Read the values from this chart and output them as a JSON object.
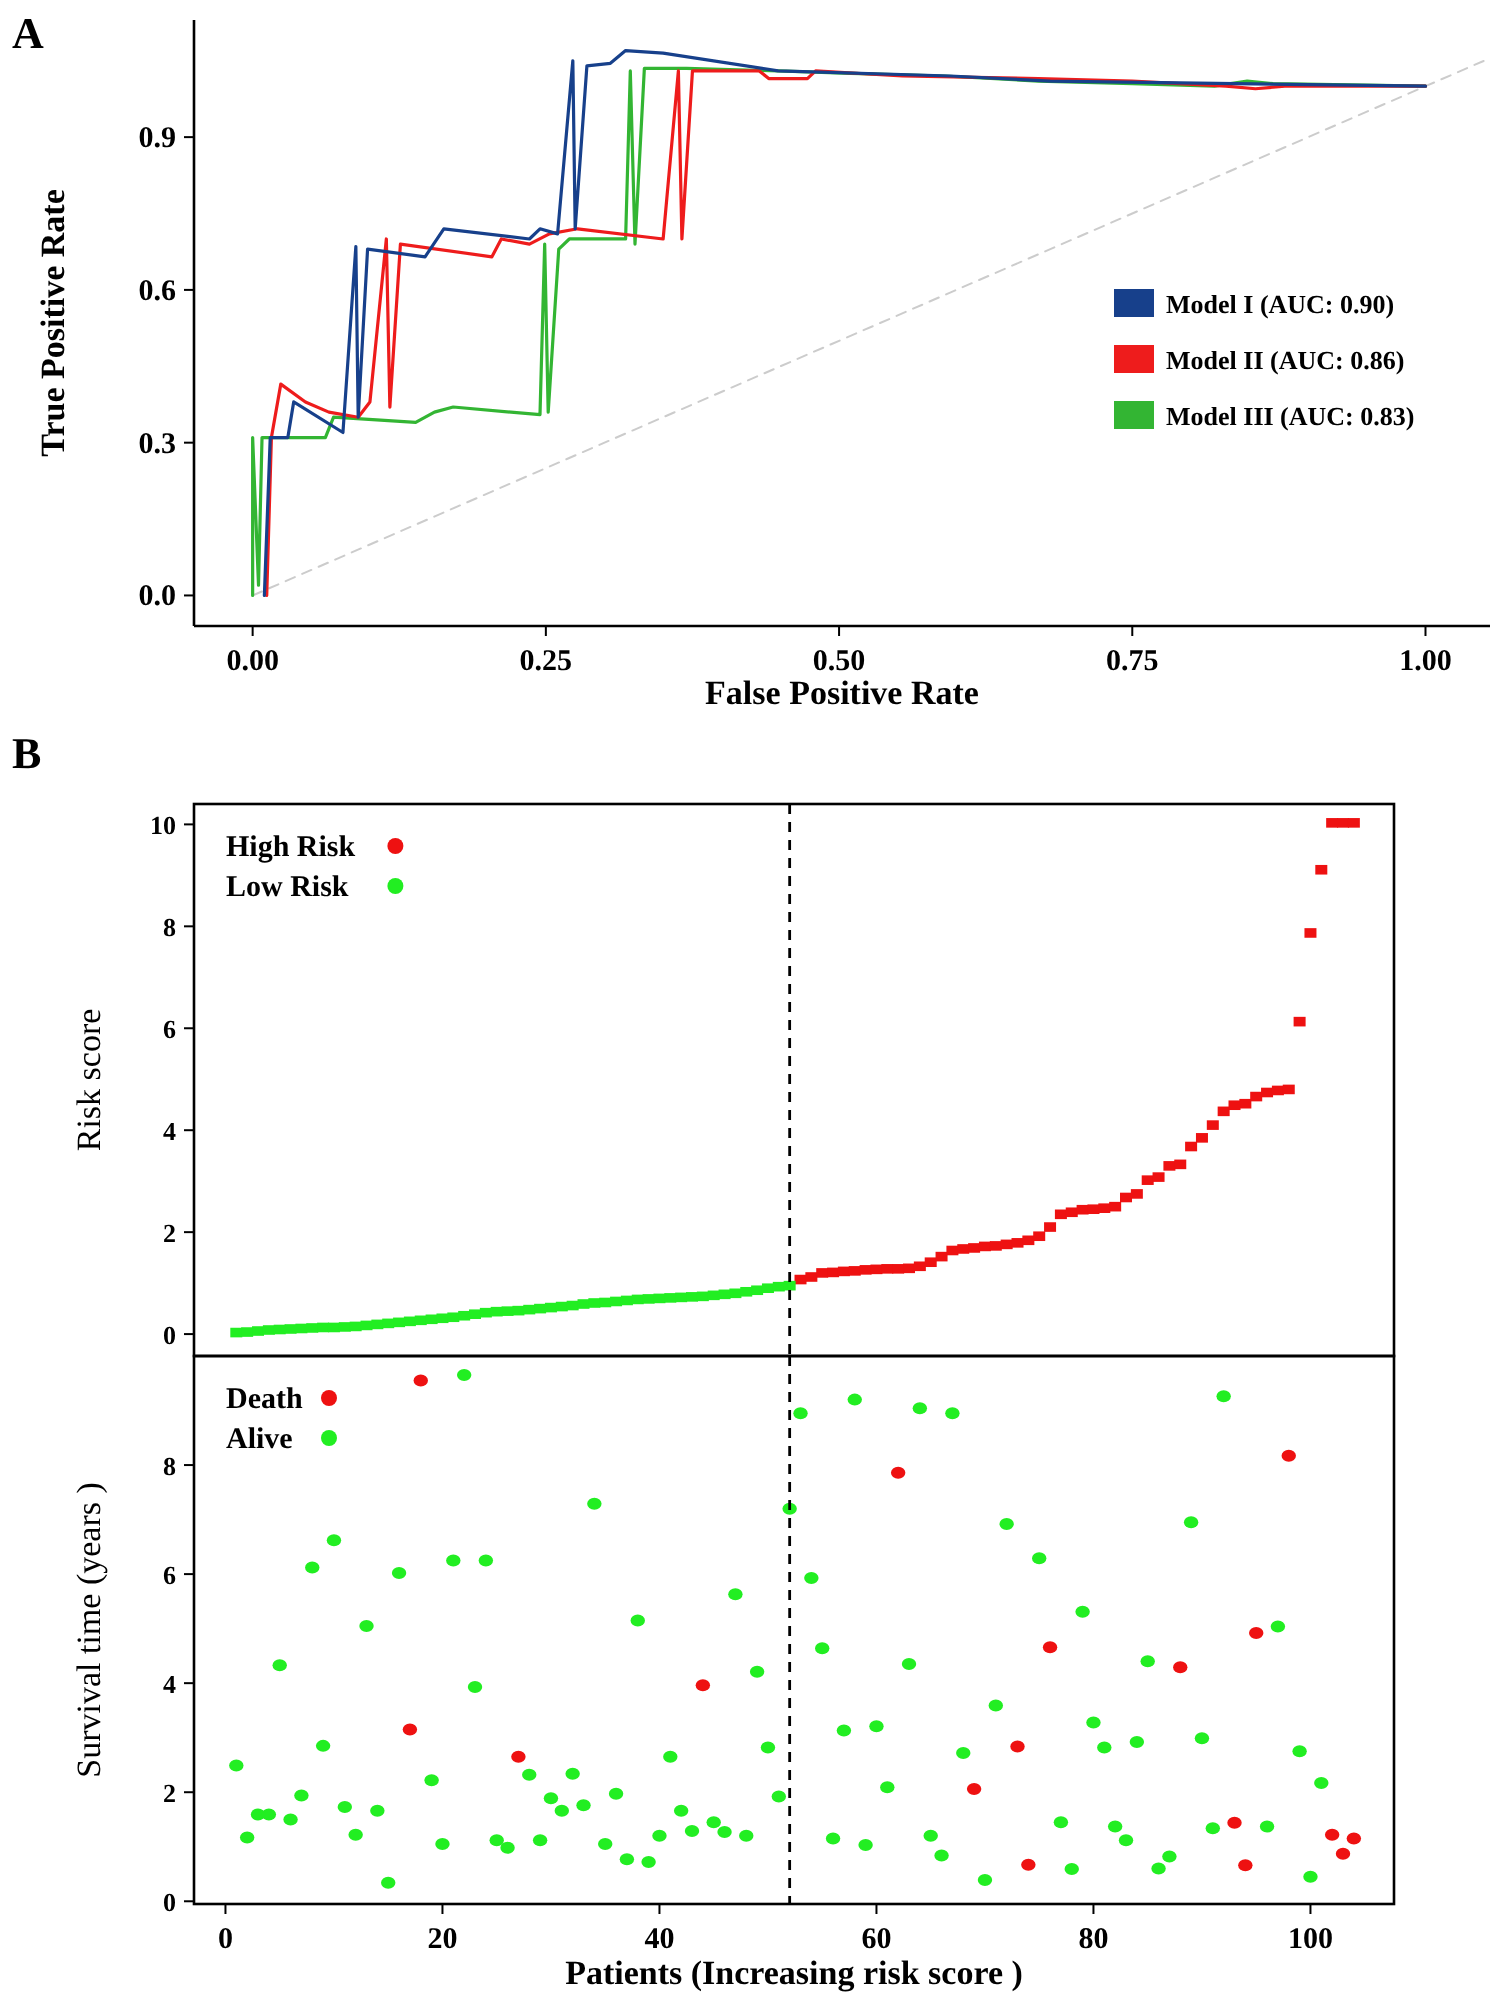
{
  "chart_data": [
    {
      "type": "line",
      "xlabel": "False Positive Rate",
      "ylabel": "True Positive Rate",
      "annotations": [
        "A"
      ],
      "xlim": [
        -0.05,
        1.055
      ],
      "ylim": [
        -0.06,
        1.13
      ],
      "xticks": [
        {
          "value": 0,
          "label": "0.00"
        },
        {
          "value": 0.25,
          "label": "0.25"
        },
        {
          "value": 0.5,
          "label": "0.50"
        },
        {
          "value": 0.75,
          "label": "0.75"
        },
        {
          "value": 1,
          "label": "1.00"
        }
      ],
      "yticks": [
        {
          "value": 0,
          "label": "0.0"
        },
        {
          "value": 0.3,
          "label": "0.3"
        },
        {
          "value": 0.6,
          "label": "0.6"
        },
        {
          "value": 0.9,
          "label": "0.9"
        }
      ],
      "legend": "right",
      "grid": false,
      "series": [
        {
          "x": [
            0,
            1.05
          ],
          "values": [
            0,
            1.05
          ],
          "color": "#cccccc",
          "line_style": "dashed"
        },
        {
          "name": "Model III (AUC: 0.83)",
          "color": "#33b533",
          "x": [
            0,
            0,
            0.005,
            0.008,
            0.062,
            0.069,
            0.139,
            0.155,
            0.171,
            0.245,
            0.249,
            0.252,
            0.261,
            0.27,
            0.318,
            0.322,
            0.326,
            0.334,
            0.37,
            0.448,
            0.51,
            0.59,
            0.67,
            0.75,
            0.82,
            0.848,
            0.87,
            1
          ],
          "values": [
            0,
            0.31,
            0.02,
            0.31,
            0.31,
            0.35,
            0.34,
            0.36,
            0.37,
            0.355,
            0.69,
            0.36,
            0.68,
            0.7,
            0.7,
            1.03,
            0.69,
            1.035,
            1.035,
            1.03,
            1.025,
            1.02,
            1.01,
            1.005,
            1,
            1.01,
            1.005,
            1
          ]
        },
        {
          "name": "Model II (AUC: 0.86)",
          "color": "#ee1c1c",
          "x": [
            0.012,
            0.016,
            0.024,
            0.045,
            0.065,
            0.09,
            0.1,
            0.114,
            0.117,
            0.126,
            0.204,
            0.212,
            0.236,
            0.253,
            0.277,
            0.35,
            0.363,
            0.366,
            0.375,
            0.432,
            0.44,
            0.473,
            0.48,
            0.554,
            0.67,
            0.75,
            0.83,
            0.855,
            0.88,
            1
          ],
          "values": [
            0,
            0.31,
            0.415,
            0.38,
            0.36,
            0.35,
            0.38,
            0.7,
            0.37,
            0.69,
            0.665,
            0.7,
            0.69,
            0.71,
            0.72,
            0.7,
            1.03,
            0.7,
            1.03,
            1.03,
            1.015,
            1.015,
            1.03,
            1.02,
            1.015,
            1.01,
            1,
            0.995,
            1,
            1
          ]
        },
        {
          "name": "Model I (AUC: 0.90)",
          "color": "#17408b",
          "x": [
            0.01,
            0.015,
            0.03,
            0.035,
            0.077,
            0.088,
            0.09,
            0.098,
            0.147,
            0.163,
            0.236,
            0.245,
            0.26,
            0.273,
            0.275,
            0.285,
            0.305,
            0.318,
            0.35,
            0.448,
            0.595,
            0.68,
            1
          ],
          "values": [
            0,
            0.31,
            0.31,
            0.38,
            0.32,
            0.685,
            0.35,
            0.68,
            0.665,
            0.72,
            0.7,
            0.72,
            0.71,
            1.05,
            0.72,
            1.04,
            1.045,
            1.07,
            1.065,
            1.03,
            1.02,
            1.01,
            1
          ]
        }
      ]
    },
    {
      "type": "scatter",
      "ylabel": "Risk score",
      "annotations": [
        "B"
      ],
      "xlim": [
        -2.9,
        107.7
      ],
      "ylim": [
        -0.43,
        10.4
      ],
      "yticks": [
        0,
        2,
        4,
        6,
        8,
        10
      ],
      "tick_labels": "y",
      "marker": "square",
      "legend": "top left",
      "grid": false,
      "ref_lines": [
        {
          "axis": "x",
          "value": 52,
          "color": "#000000",
          "line_style": "dashed"
        }
      ],
      "series": [
        {
          "name": "High Risk",
          "color": "#ee1111",
          "x": [
            53,
            54,
            55,
            56,
            57,
            58,
            59,
            60,
            61,
            62,
            63,
            64,
            65,
            66,
            67,
            68,
            69,
            70,
            71,
            72,
            73,
            74,
            75,
            76,
            77,
            78,
            79,
            80,
            81,
            82,
            83,
            84,
            85,
            86,
            87,
            88,
            89,
            90,
            91,
            92,
            93,
            94,
            95,
            96,
            97,
            98,
            99,
            100,
            101,
            102,
            103,
            104
          ],
          "values": [
            1.07,
            1.12,
            1.2,
            1.21,
            1.23,
            1.24,
            1.26,
            1.27,
            1.28,
            1.28,
            1.29,
            1.33,
            1.41,
            1.52,
            1.64,
            1.67,
            1.69,
            1.72,
            1.73,
            1.76,
            1.79,
            1.84,
            1.92,
            2.1,
            2.35,
            2.39,
            2.44,
            2.45,
            2.47,
            2.5,
            2.68,
            2.75,
            3.02,
            3.08,
            3.3,
            3.33,
            3.68,
            3.85,
            4.1,
            4.37,
            4.49,
            4.52,
            4.66,
            4.74,
            4.78,
            4.8,
            6.13,
            7.87,
            9.11,
            10.03,
            10.03,
            10.03
          ]
        },
        {
          "name": "Low Risk",
          "color": "#22ee22",
          "x": [
            1,
            2,
            3,
            4,
            5,
            6,
            7,
            8,
            9,
            10,
            11,
            12,
            13,
            14,
            15,
            16,
            17,
            18,
            19,
            20,
            21,
            22,
            23,
            24,
            25,
            26,
            27,
            28,
            29,
            30,
            31,
            32,
            33,
            34,
            35,
            36,
            37,
            38,
            39,
            40,
            41,
            42,
            43,
            44,
            45,
            46,
            47,
            48,
            49,
            50,
            51,
            52
          ],
          "values": [
            0.03,
            0.04,
            0.06,
            0.08,
            0.09,
            0.1,
            0.11,
            0.12,
            0.13,
            0.13,
            0.14,
            0.15,
            0.17,
            0.19,
            0.21,
            0.23,
            0.25,
            0.27,
            0.29,
            0.31,
            0.33,
            0.36,
            0.39,
            0.42,
            0.44,
            0.45,
            0.46,
            0.48,
            0.5,
            0.52,
            0.54,
            0.56,
            0.59,
            0.61,
            0.62,
            0.64,
            0.66,
            0.68,
            0.69,
            0.7,
            0.71,
            0.72,
            0.73,
            0.74,
            0.76,
            0.78,
            0.8,
            0.83,
            0.86,
            0.9,
            0.93,
            0.95
          ]
        }
      ]
    },
    {
      "type": "scatter",
      "xlabel": "Patients (Increasing risk score )",
      "ylabel": "Survival time (years )",
      "xlim": [
        -2.9,
        107.7
      ],
      "ylim": [
        -0.05,
        10.0
      ],
      "xticks": [
        0,
        20,
        40,
        60,
        80,
        100
      ],
      "yticks": [
        0,
        2,
        4,
        6,
        8
      ],
      "marker": "circle",
      "legend": "top left",
      "grid": false,
      "ref_lines": [
        {
          "axis": "x",
          "value": 52,
          "color": "#000000",
          "line_style": "dashed"
        }
      ],
      "series": [
        {
          "name": "Death",
          "color": "#ee1111",
          "x": [
            17,
            18,
            27,
            44,
            62,
            69,
            73,
            74,
            76,
            88,
            93,
            94,
            95,
            98,
            102,
            103,
            104
          ],
          "values": [
            3.15,
            9.55,
            2.65,
            3.96,
            7.86,
            2.06,
            2.84,
            0.67,
            4.66,
            4.29,
            1.44,
            0.66,
            4.92,
            8.17,
            1.22,
            0.87,
            1.15
          ]
        },
        {
          "name": "Alive",
          "color": "#22ee22",
          "x": [
            1,
            2,
            3,
            4,
            5,
            6,
            7,
            8,
            9,
            10,
            11,
            12,
            13,
            14,
            15,
            16,
            19,
            20,
            21,
            22,
            23,
            24,
            25,
            26,
            28,
            29,
            30,
            31,
            32,
            33,
            34,
            35,
            36,
            37,
            38,
            39,
            40,
            41,
            42,
            43,
            45,
            46,
            47,
            48,
            49,
            50,
            51,
            52,
            53,
            54,
            55,
            56,
            57,
            58,
            59,
            60,
            61,
            63,
            64,
            65,
            66,
            67,
            68,
            70,
            71,
            72,
            75,
            77,
            78,
            79,
            80,
            81,
            82,
            83,
            84,
            85,
            86,
            87,
            89,
            90,
            91,
            92,
            96,
            97,
            99,
            100,
            101
          ],
          "values": [
            2.49,
            1.17,
            1.59,
            1.59,
            4.33,
            1.5,
            1.94,
            6.12,
            2.85,
            6.62,
            1.73,
            1.22,
            5.05,
            1.66,
            0.34,
            6.02,
            2.22,
            1.05,
            6.25,
            9.65,
            3.93,
            6.25,
            1.12,
            0.98,
            2.32,
            1.12,
            1.89,
            1.66,
            2.34,
            1.76,
            7.29,
            1.05,
            1.97,
            0.77,
            5.15,
            0.72,
            1.2,
            2.65,
            1.66,
            1.29,
            1.45,
            1.27,
            5.63,
            1.2,
            4.21,
            2.82,
            1.92,
            7.2,
            8.95,
            5.93,
            4.64,
            1.15,
            3.13,
            9.2,
            1.03,
            3.21,
            2.09,
            4.35,
            9.04,
            1.2,
            0.84,
            8.95,
            2.72,
            0.39,
            3.59,
            6.92,
            6.29,
            1.45,
            0.59,
            5.31,
            3.28,
            2.82,
            1.37,
            1.12,
            2.92,
            4.4,
            0.6,
            0.82,
            6.95,
            2.99,
            1.34,
            9.26,
            1.37,
            5.04,
            2.75,
            0.45,
            2.17
          ]
        }
      ]
    }
  ]
}
